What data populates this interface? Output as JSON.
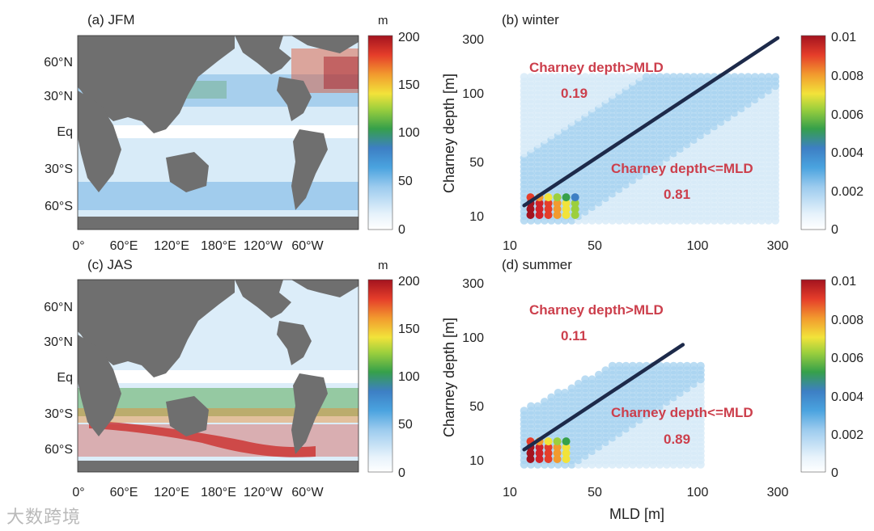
{
  "map_panels": [
    {
      "id": "a",
      "title": "(a) JFM",
      "lat_ticks": [
        "60°N",
        "30°N",
        "Eq",
        "30°S",
        "60°S"
      ],
      "lon_ticks": [
        "0°",
        "60°E",
        "120°E",
        "180°E",
        "120°W",
        "60°W"
      ],
      "colorbar": {
        "unit": "m",
        "ticks": [
          "200",
          "150",
          "100",
          "50",
          "0"
        ],
        "range": [
          0,
          200
        ]
      }
    },
    {
      "id": "c",
      "title": "(c) JAS",
      "lat_ticks": [
        "60°N",
        "30°N",
        "Eq",
        "30°S",
        "60°S"
      ],
      "lon_ticks": [
        "0°",
        "60°E",
        "120°E",
        "180°E",
        "120°W",
        "60°W"
      ],
      "colorbar": {
        "unit": "m",
        "ticks": [
          "200",
          "150",
          "100",
          "50",
          "0"
        ],
        "range": [
          0,
          200
        ]
      }
    }
  ],
  "chart_data": [
    {
      "type": "scatter",
      "title": "(b) winter",
      "xlabel": "",
      "ylabel": "Charney depth [m]",
      "xscale": "log",
      "yscale": "log",
      "xlim": [
        10,
        300
      ],
      "ylim": [
        8,
        300
      ],
      "xticks": [
        "10",
        "50",
        "100",
        "300"
      ],
      "yticks": [
        "300",
        "100",
        "50",
        "10"
      ],
      "reference_line": {
        "x": [
          12,
          300
        ],
        "y": [
          12,
          300
        ]
      },
      "annotations": [
        {
          "text": "Charney depth>MLD",
          "value": "0.19"
        },
        {
          "text": "Charney depth<=MLD",
          "value": "0.81"
        }
      ],
      "colorbar": {
        "ticks": [
          "0.01",
          "0.008",
          "0.006",
          "0.004",
          "0.002",
          "0"
        ],
        "range": [
          0,
          0.01
        ]
      }
    },
    {
      "type": "scatter",
      "title": "(d) summer",
      "xlabel": "MLD [m]",
      "ylabel": "Charney depth [m]",
      "xscale": "log",
      "yscale": "log",
      "xlim": [
        10,
        300
      ],
      "ylim": [
        8,
        300
      ],
      "xticks": [
        "10",
        "50",
        "100",
        "300"
      ],
      "yticks": [
        "300",
        "100",
        "50",
        "10"
      ],
      "reference_line": {
        "x": [
          12,
          90
        ],
        "y": [
          12,
          90
        ]
      },
      "annotations": [
        {
          "text": "Charney depth>MLD",
          "value": "0.11"
        },
        {
          "text": "Charney depth<=MLD",
          "value": "0.89"
        }
      ],
      "colorbar": {
        "ticks": [
          "0.01",
          "0.008",
          "0.006",
          "0.004",
          "0.002",
          "0"
        ],
        "range": [
          0,
          0.01
        ]
      }
    }
  ],
  "watermark": "大数跨境",
  "colors": {
    "land": "#6f6f6f",
    "line": "#1d2a4a",
    "annotation": "#cc3f4c"
  }
}
